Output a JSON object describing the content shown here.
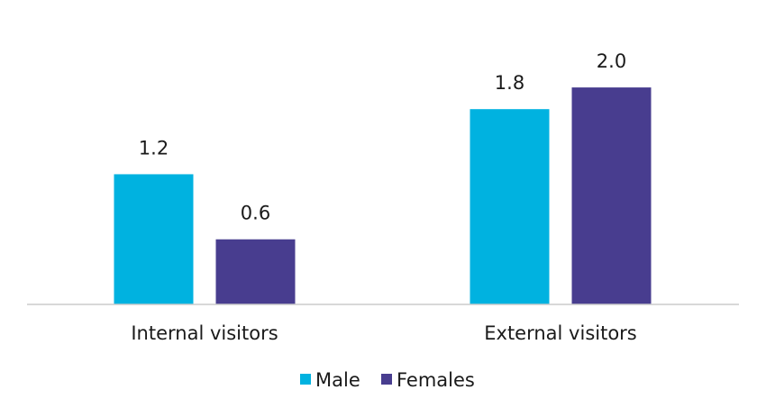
{
  "chart_data": {
    "type": "bar",
    "categories": [
      "Internal visitors",
      "External visitors"
    ],
    "series": [
      {
        "name": "Male",
        "values": [
          1.2,
          1.8
        ],
        "color": "#00b2e0"
      },
      {
        "name": "Females",
        "values": [
          0.6,
          2.0
        ],
        "color": "#483d8f"
      }
    ],
    "data_labels": [
      [
        "1.2",
        "1.8"
      ],
      [
        "0.6",
        "2.0"
      ]
    ],
    "ylim": [
      0,
      2.2
    ],
    "grid": false,
    "legend_position": "bottom",
    "axis_color": "#cccccc"
  }
}
